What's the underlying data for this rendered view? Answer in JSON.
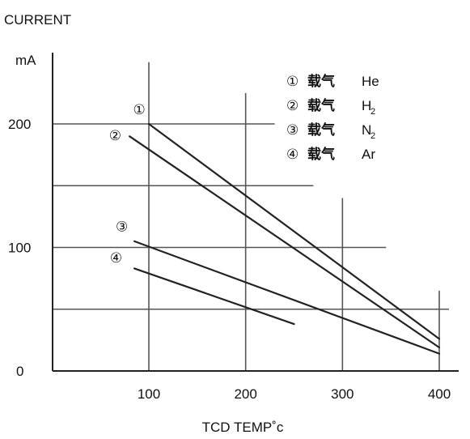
{
  "chart_data": {
    "type": "line",
    "title": "",
    "ylabel_top": "CURRENT",
    "ylabel_unit": "mA",
    "xlabel": "TCD TEMP˚c",
    "xlim": [
      0,
      400
    ],
    "ylim": [
      0,
      200
    ],
    "x_ticks": [
      {
        "value": 100,
        "label": "100"
      },
      {
        "value": 200,
        "label": "200"
      },
      {
        "value": 300,
        "label": "300"
      },
      {
        "value": 400,
        "label": "400"
      }
    ],
    "y_ticks": [
      {
        "value": 0,
        "label": "0"
      },
      {
        "value": 100,
        "label": "100"
      },
      {
        "value": 200,
        "label": "200"
      }
    ],
    "grid_lines": {
      "horizontal": [
        {
          "y": 200,
          "x_start": 0,
          "x_end": 230
        },
        {
          "y": 150,
          "x_start": 0,
          "x_end": 270
        },
        {
          "y": 100,
          "x_start": 0,
          "x_end": 345
        },
        {
          "y": 50,
          "x_start": 0,
          "x_end": 410
        }
      ],
      "vertical": [
        {
          "x": 100,
          "y_end": 250
        },
        {
          "x": 200,
          "y_end": 225
        },
        {
          "x": 300,
          "y_end": 140
        },
        {
          "x": 400,
          "y_end": 65
        }
      ]
    },
    "series": [
      {
        "marker": "①",
        "x": [
          100,
          400
        ],
        "y": [
          200,
          26
        ]
      },
      {
        "marker": "②",
        "x": [
          80,
          400
        ],
        "y": [
          190,
          19
        ]
      },
      {
        "marker": "③",
        "x": [
          85,
          400
        ],
        "y": [
          105,
          14
        ]
      },
      {
        "marker": "④",
        "x": [
          85,
          250
        ],
        "y": [
          83,
          38
        ]
      }
    ],
    "series_labels": [
      {
        "marker": "①",
        "point": [
          90,
          208
        ]
      },
      {
        "marker": "②",
        "point": [
          65,
          187
        ]
      },
      {
        "marker": "③",
        "point": [
          72,
          113
        ]
      },
      {
        "marker": "④",
        "point": [
          66,
          88
        ]
      }
    ],
    "legend": {
      "position": "top-right",
      "entries": [
        {
          "marker": "①",
          "carrier": "载气",
          "gas": "He",
          "sub": ""
        },
        {
          "marker": "②",
          "carrier": "载气",
          "gas": "H",
          "sub": "2"
        },
        {
          "marker": "③",
          "carrier": "载气",
          "gas": "N",
          "sub": "2"
        },
        {
          "marker": "④",
          "carrier": "载气",
          "gas": "Ar",
          "sub": ""
        }
      ]
    }
  }
}
